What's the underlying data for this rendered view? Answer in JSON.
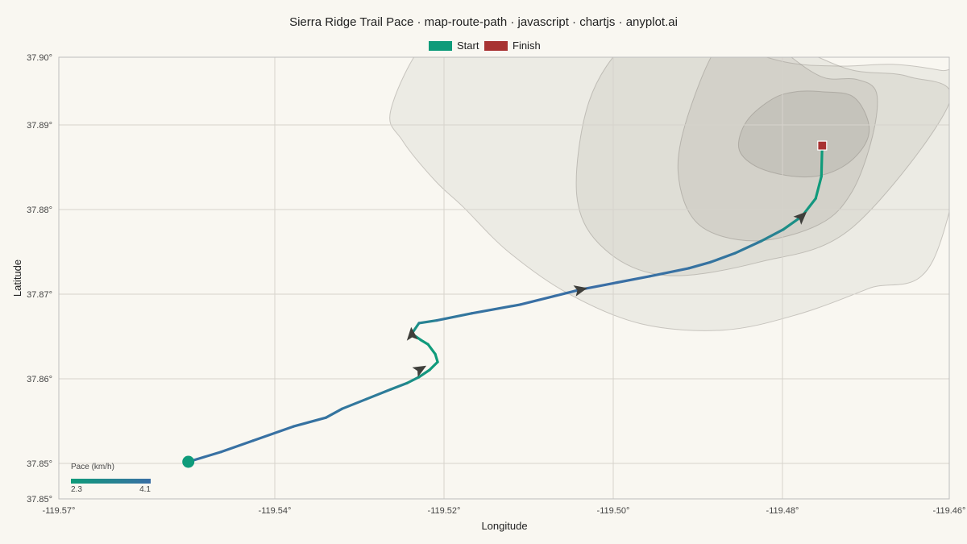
{
  "chart_data": {
    "type": "line",
    "title": "Sierra Ridge Trail Pace · map-route-path · javascript · chartjs · anyplot.ai",
    "xlabel": "Longitude",
    "ylabel": "Latitude",
    "xlim": [
      -119.57,
      -119.46
    ],
    "ylim": [
      37.85,
      37.9
    ],
    "x_ticks": [
      "-119.57°",
      "-119.54°",
      "-119.52°",
      "-119.50°",
      "-119.48°",
      "-119.46°"
    ],
    "y_ticks": [
      "37.90°",
      "37.89°",
      "37.88°",
      "37.87°",
      "37.86°",
      "37.85°",
      "37.85°"
    ],
    "grid": true,
    "legend": {
      "position": "top-center",
      "items": [
        {
          "label": "Start",
          "color": "#0f9b7a"
        },
        {
          "label": "Finish",
          "color": "#a83232"
        }
      ]
    },
    "pace_scale": {
      "title": "Pace (km/h)",
      "min": "2.3",
      "max": "4.1",
      "color_low": "#0f9b7a",
      "color_high": "#3a6ea5"
    },
    "route": {
      "lon": [
        -119.554,
        -119.55,
        -119.546,
        -119.541,
        -119.537,
        -119.535,
        -119.532,
        -119.529,
        -119.527,
        -119.5255,
        -119.5242,
        -119.5232,
        -119.5235,
        -119.5244,
        -119.5253,
        -119.5264,
        -119.5255,
        -119.5233,
        -119.519,
        -119.513,
        -119.5055,
        -119.501,
        -119.497,
        -119.4922,
        -119.4895,
        -119.4865,
        -119.4832,
        -119.4805,
        -119.4782,
        -119.4765,
        -119.4758,
        -119.4757
      ],
      "lat": [
        37.8542,
        37.8553,
        37.8566,
        37.8582,
        37.8592,
        37.8602,
        37.8613,
        37.8624,
        37.8631,
        37.8638,
        37.8646,
        37.8655,
        37.8664,
        37.8675,
        37.868,
        37.8687,
        37.8699,
        37.8702,
        37.871,
        37.872,
        37.8737,
        37.8745,
        37.8752,
        37.8761,
        37.8768,
        37.8778,
        37.8792,
        37.8805,
        37.882,
        37.884,
        37.8865,
        37.89
      ],
      "pace": [
        4.0,
        4.0,
        4.0,
        4.0,
        3.9,
        3.8,
        3.7,
        3.5,
        3.0,
        2.6,
        2.4,
        2.3,
        2.3,
        2.3,
        2.4,
        2.5,
        3.0,
        3.6,
        3.9,
        4.0,
        4.1,
        4.1,
        4.0,
        4.0,
        3.9,
        3.8,
        3.6,
        3.0,
        2.6,
        2.4,
        2.3,
        2.3
      ]
    },
    "arrows": [
      {
        "lon": -119.5253,
        "lat": 37.8647
      },
      {
        "lon": -119.5264,
        "lat": 37.8687
      },
      {
        "lon": -119.5055,
        "lat": 37.8737
      },
      {
        "lon": -119.4782,
        "lat": 37.882
      }
    ],
    "elevation_contours": [
      {
        "level": 1,
        "lon": [
          -119.4735,
          -119.467,
          -119.461,
          -119.457,
          -119.462,
          -119.47,
          -119.479,
          -119.488,
          -119.498,
          -119.507,
          -119.5145,
          -119.52,
          -119.5235,
          -119.5275,
          -119.529,
          -119.5245,
          -119.517,
          -119.5075,
          -119.498,
          -119.489,
          -119.4805
        ],
        "lat": [
          37.899,
          37.8992,
          37.8985,
          37.8975,
          37.877,
          37.8738,
          37.8708,
          37.8691,
          37.8698,
          37.8732,
          37.878,
          37.883,
          37.886,
          37.8905,
          37.894,
          37.902,
          37.905,
          37.906,
          37.9045,
          37.902,
          37.8995
        ]
      },
      {
        "level": 2,
        "lon": [
          -119.4718,
          -119.465,
          -119.46,
          -119.472,
          -119.4835,
          -119.495,
          -119.5025,
          -119.506,
          -119.5045,
          -119.4995,
          -119.4925,
          -119.4845,
          -119.4775
        ],
        "lat": [
          37.8985,
          37.8978,
          37.8948,
          37.8807,
          37.8768,
          37.8753,
          37.8782,
          37.8842,
          37.895,
          37.902,
          37.905,
          37.903,
          37.9005
        ]
      },
      {
        "level": 3,
        "lon": [
          -119.4755,
          -119.4715,
          -119.469,
          -119.4695,
          -119.472,
          -119.476,
          -119.484,
          -119.491,
          -119.4935,
          -119.492,
          -119.488,
          -119.483,
          -119.4795
        ],
        "lat": [
          37.8977,
          37.8975,
          37.896,
          37.891,
          37.8848,
          37.8811,
          37.8792,
          37.8811,
          37.887,
          37.8942,
          37.902,
          37.903,
          37.9
        ]
      },
      {
        "level": 4,
        "lon": [
          -119.4758,
          -119.472,
          -119.4701,
          -119.4702,
          -119.4725,
          -119.476,
          -119.48,
          -119.484,
          -119.486,
          -119.485,
          -119.4818,
          -119.4789
        ],
        "lat": [
          37.8961,
          37.8956,
          37.893,
          37.8905,
          37.888,
          37.8866,
          37.8866,
          37.8877,
          37.8897,
          37.8928,
          37.8953,
          37.8961
        ]
      }
    ]
  }
}
